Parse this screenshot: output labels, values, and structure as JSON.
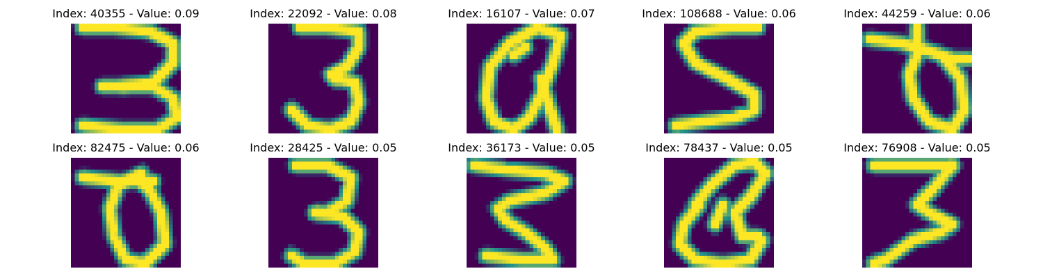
{
  "colormap": {
    "name": "viridis",
    "background": "#440154",
    "mid": "#21918c",
    "high": "#fde725"
  },
  "items": [
    {
      "title": "Index: 40355 - Value: 0.09",
      "glyph": "3-rounded"
    },
    {
      "title": "Index: 22092 - Value: 0.08",
      "glyph": "3-tall"
    },
    {
      "title": "Index: 16107 - Value: 0.07",
      "glyph": "loop-a"
    },
    {
      "title": "Index: 108688 - Value: 0.06",
      "glyph": "5-like"
    },
    {
      "title": "Index: 44259 - Value: 0.06",
      "glyph": "crossed-loop"
    },
    {
      "title": "Index: 82475 - Value: 0.06",
      "glyph": "crossed-oval"
    },
    {
      "title": "Index: 28425 - Value: 0.05",
      "glyph": "3-upright"
    },
    {
      "title": "Index: 36173 - Value: 0.05",
      "glyph": "3-zigzag"
    },
    {
      "title": "Index: 78437 - Value: 0.05",
      "glyph": "loop-q"
    },
    {
      "title": "Index: 76908 - Value: 0.05",
      "glyph": "3-seven"
    }
  ]
}
